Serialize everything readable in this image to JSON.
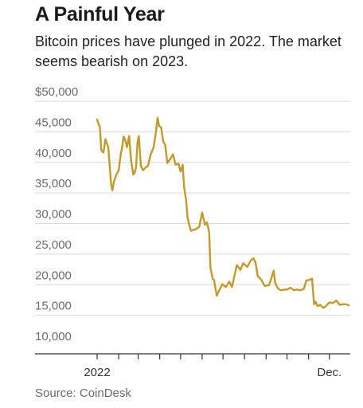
{
  "header": {
    "title": "A Painful Year",
    "subtitle": "Bitcoin prices have plunged in 2022. The market seems bearish on 2023."
  },
  "source": "Source: CoinDesk",
  "colors": {
    "line": "#c29a2b",
    "grid": "#d9d9d9",
    "axis": "#333333",
    "text": "#6b6b6b"
  },
  "chart_data": {
    "type": "line",
    "title": "A Painful Year",
    "subtitle": "Bitcoin prices have plunged in 2022. The market seems bearish on 2023.",
    "xlabel": "",
    "ylabel": "",
    "ylim": [
      10000,
      50000
    ],
    "yticks": [
      10000,
      15000,
      20000,
      25000,
      30000,
      35000,
      40000,
      45000,
      50000
    ],
    "ytick_labels": [
      "10,000",
      "15,000",
      "20,000",
      "25,000",
      "30,000",
      "35,000",
      "40,000",
      "45,000",
      "$50,000"
    ],
    "xlim": [
      "2022-01-01",
      "2022-12-31"
    ],
    "x_tick_dates": [
      "2022-01-01",
      "2022-02-01",
      "2022-03-01",
      "2022-04-01",
      "2022-05-01",
      "2022-06-01",
      "2022-07-01",
      "2022-08-01",
      "2022-09-01",
      "2022-10-01",
      "2022-11-01",
      "2022-12-01"
    ],
    "x_tick_labels": [
      {
        "date": "2022-01-01",
        "label": "2022"
      },
      {
        "date": "2022-12-01",
        "label": "Dec."
      }
    ],
    "grid": true,
    "legend": "none",
    "series": [
      {
        "x": [
          "2022-01-01",
          "2022-01-03",
          "2022-01-05",
          "2022-01-07",
          "2022-01-10",
          "2022-01-13",
          "2022-01-17",
          "2022-01-21",
          "2022-01-23",
          "2022-01-25",
          "2022-01-28",
          "2022-02-01",
          "2022-02-04",
          "2022-02-06",
          "2022-02-08",
          "2022-02-10",
          "2022-02-13",
          "2022-02-16",
          "2022-02-19",
          "2022-02-22",
          "2022-02-24",
          "2022-02-26",
          "2022-02-28",
          "2022-03-02",
          "2022-03-05",
          "2022-03-08",
          "2022-03-12",
          "2022-03-15",
          "2022-03-19",
          "2022-03-23",
          "2022-03-26",
          "2022-03-29",
          "2022-03-31",
          "2022-04-03",
          "2022-04-06",
          "2022-04-09",
          "2022-04-12",
          "2022-04-16",
          "2022-04-20",
          "2022-04-24",
          "2022-04-28",
          "2022-05-01",
          "2022-05-04",
          "2022-05-06",
          "2022-05-09",
          "2022-05-11",
          "2022-05-13",
          "2022-05-16",
          "2022-05-20",
          "2022-05-24",
          "2022-05-28",
          "2022-06-01",
          "2022-06-05",
          "2022-06-08",
          "2022-06-11",
          "2022-06-13",
          "2022-06-16",
          "2022-06-18",
          "2022-06-22",
          "2022-06-26",
          "2022-06-30",
          "2022-07-05",
          "2022-07-10",
          "2022-07-14",
          "2022-07-18",
          "2022-07-21",
          "2022-07-26",
          "2022-07-30",
          "2022-08-05",
          "2022-08-10",
          "2022-08-14",
          "2022-08-17",
          "2022-08-20",
          "2022-08-25",
          "2022-08-30",
          "2022-09-05",
          "2022-09-09",
          "2022-09-12",
          "2022-09-14",
          "2022-09-18",
          "2022-09-22",
          "2022-09-27",
          "2022-10-01",
          "2022-10-06",
          "2022-10-11",
          "2022-10-15",
          "2022-10-20",
          "2022-10-25",
          "2022-10-29",
          "2022-11-03",
          "2022-11-06",
          "2022-11-08",
          "2022-11-09",
          "2022-11-11",
          "2022-11-14",
          "2022-11-18",
          "2022-11-22",
          "2022-11-26",
          "2022-12-01",
          "2022-12-06",
          "2022-12-11",
          "2022-12-16",
          "2022-12-20",
          "2022-12-25",
          "2022-12-29"
        ],
        "values": [
          47000,
          46300,
          45800,
          42000,
          41600,
          43800,
          42500,
          36500,
          35400,
          36800,
          37800,
          38700,
          41300,
          42500,
          44200,
          43800,
          42500,
          44300,
          40200,
          38000,
          38300,
          39200,
          43200,
          44300,
          39400,
          38700,
          39200,
          39400,
          41300,
          42400,
          44500,
          47300,
          46000,
          45700,
          43500,
          42800,
          39900,
          40500,
          41300,
          39600,
          39800,
          38500,
          39600,
          36000,
          33800,
          31000,
          30000,
          28800,
          29000,
          29100,
          29500,
          31800,
          29800,
          30200,
          28600,
          22800,
          21000,
          20800,
          18200,
          19200,
          20100,
          19600,
          20500,
          19600,
          21800,
          23200,
          22400,
          23500,
          22900,
          24000,
          24300,
          23500,
          21400,
          20800,
          19800,
          19900,
          21200,
          22300,
          20300,
          19400,
          19100,
          19200,
          19200,
          19500,
          19100,
          19200,
          19100,
          19300,
          20700,
          20800,
          21000,
          18200,
          16800,
          17200,
          16500,
          16700,
          16200,
          16500,
          17100,
          17000,
          17400,
          16700,
          16800,
          16800,
          16600
        ]
      }
    ]
  }
}
